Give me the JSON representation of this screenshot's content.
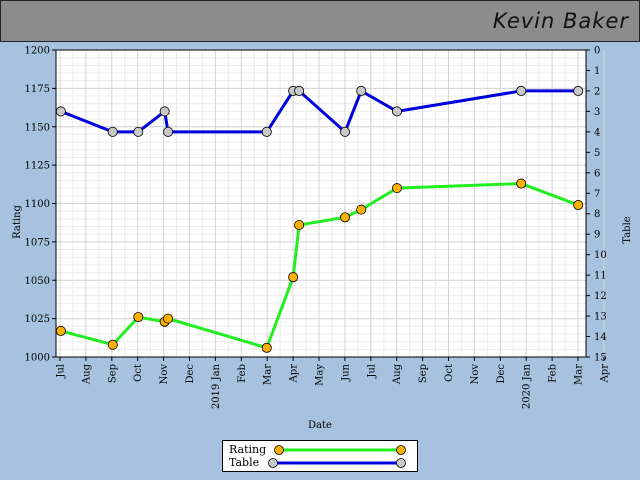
{
  "header": {
    "name": "Kevin Baker"
  },
  "chart_data": {
    "type": "line",
    "xlabel": "Date",
    "ylabel_left": "Rating",
    "ylabel_right": "Table",
    "ylim_left": [
      1000,
      1200
    ],
    "ylim_right": [
      15,
      0
    ],
    "x_tick_labels": [
      "Jul",
      "Aug",
      "Sep",
      "Oct",
      "Nov",
      "Dec",
      "2019 Jan",
      "Feb",
      "Mar",
      "Apr",
      "May",
      "Jun",
      "Jul",
      "Aug",
      "Sep",
      "Oct",
      "Nov",
      "Dec",
      "2020 Jan",
      "Feb",
      "Mar",
      "Apr"
    ],
    "y_left_ticks": [
      1000,
      1025,
      1050,
      1075,
      1100,
      1125,
      1150,
      1175,
      1200
    ],
    "y_right_ticks": [
      0,
      1,
      2,
      3,
      4,
      5,
      6,
      7,
      8,
      9,
      10,
      11,
      12,
      13,
      14,
      15
    ],
    "grid": true,
    "legend_position": "bottom-center",
    "series": [
      {
        "name": "Rating",
        "axis": "left",
        "color": "#22ee22",
        "marker_color": "#ffb000",
        "x": [
          "2018-07-02",
          "2018-09-01",
          "2018-10-01",
          "2018-11-01",
          "2018-11-05",
          "2019-03-01",
          "2019-04-01",
          "2019-04-08",
          "2019-06-01",
          "2019-06-20",
          "2019-08-01",
          "2019-12-25",
          "2020-03-01"
        ],
        "values": [
          1017,
          1008,
          1026,
          1023,
          1025,
          1006,
          1052,
          1086,
          1091,
          1096,
          1110,
          1113,
          1099
        ]
      },
      {
        "name": "Table",
        "axis": "right",
        "color": "#0000dd",
        "marker_color": "#c8c8c8",
        "x": [
          "2018-07-02",
          "2018-09-01",
          "2018-10-01",
          "2018-11-01",
          "2018-11-05",
          "2019-03-01",
          "2019-04-01",
          "2019-04-08",
          "2019-06-01",
          "2019-06-20",
          "2019-08-01",
          "2019-12-25",
          "2020-03-01"
        ],
        "values": [
          3,
          4,
          4,
          3,
          4,
          4,
          2,
          2,
          4,
          2,
          3,
          2,
          2
        ]
      }
    ]
  }
}
